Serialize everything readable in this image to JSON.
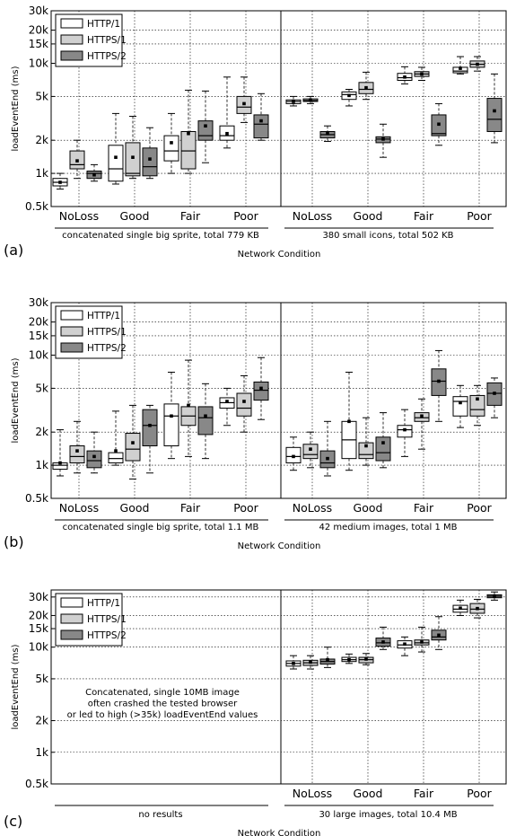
{
  "colors": {
    "HTTP/1": "#ffffff",
    "HTTPS/1": "#d0d0d0",
    "HTTPS/2": "#888888"
  },
  "legend": [
    "HTTP/1",
    "HTTPS/1",
    "HTTPS/2"
  ],
  "xlabel": "Network Condition",
  "ylabel": "loadEventEnd (ms)",
  "yticks": [
    "0.5k",
    "1k",
    "2k",
    "5k",
    "10k",
    "15k",
    "20k",
    "30k"
  ],
  "chart_data": [
    {
      "type": "box",
      "panel_label": "(a)",
      "scale": "log",
      "ylim": [
        500,
        30000
      ],
      "grid": true,
      "legend_position": "top-left",
      "groups": [
        {
          "subtitle": "concatenated single big sprite, total 779 KB",
          "categories": [
            "NoLoss",
            "Good",
            "Fair",
            "Poor"
          ],
          "series": [
            {
              "name": "HTTP/1",
              "boxes": [
                {
                  "wlo": 720,
                  "q1": 770,
                  "med": 830,
                  "q3": 900,
                  "whi": 1000,
                  "mean": 830
                },
                {
                  "wlo": 800,
                  "q1": 850,
                  "med": 1100,
                  "q3": 1800,
                  "whi": 3500,
                  "mean": 1400
                },
                {
                  "wlo": 1000,
                  "q1": 1300,
                  "med": 1600,
                  "q3": 2200,
                  "whi": 3500,
                  "mean": 1900
                },
                {
                  "wlo": 1700,
                  "q1": 2000,
                  "med": 2200,
                  "q3": 2700,
                  "whi": 7500,
                  "mean": 2300
                }
              ]
            },
            {
              "name": "HTTPS/1",
              "boxes": [
                {
                  "wlo": 900,
                  "q1": 1100,
                  "med": 1200,
                  "q3": 1600,
                  "whi": 2000,
                  "mean": 1300
                },
                {
                  "wlo": 900,
                  "q1": 950,
                  "med": 1000,
                  "q3": 1900,
                  "whi": 3300,
                  "mean": 1400
                },
                {
                  "wlo": 1000,
                  "q1": 1100,
                  "med": 1600,
                  "q3": 2400,
                  "whi": 5700,
                  "mean": 2300
                },
                {
                  "wlo": 2900,
                  "q1": 3500,
                  "med": 4000,
                  "q3": 5000,
                  "whi": 7500,
                  "mean": 4300
                }
              ]
            },
            {
              "name": "HTTPS/2",
              "boxes": [
                {
                  "wlo": 850,
                  "q1": 900,
                  "med": 1000,
                  "q3": 1050,
                  "whi": 1200,
                  "mean": 970
                },
                {
                  "wlo": 900,
                  "q1": 950,
                  "med": 1150,
                  "q3": 1700,
                  "whi": 2600,
                  "mean": 1350
                },
                {
                  "wlo": 1250,
                  "q1": 2000,
                  "med": 2200,
                  "q3": 3000,
                  "whi": 5600,
                  "mean": 2700
                },
                {
                  "wlo": 2000,
                  "q1": 2100,
                  "med": 2800,
                  "q3": 3400,
                  "whi": 5300,
                  "mean": 3000
                }
              ]
            }
          ]
        },
        {
          "subtitle": "380 small icons, total 502 KB",
          "categories": [
            "NoLoss",
            "Good",
            "Fair",
            "Poor"
          ],
          "series": [
            {
              "name": "HTTP/1",
              "boxes": [
                {
                  "wlo": 4100,
                  "q1": 4300,
                  "med": 4500,
                  "q3": 4650,
                  "whi": 5000,
                  "mean": 4500
                },
                {
                  "wlo": 4100,
                  "q1": 4700,
                  "med": 5200,
                  "q3": 5500,
                  "whi": 5800,
                  "mean": 5100
                },
                {
                  "wlo": 6500,
                  "q1": 7000,
                  "med": 7400,
                  "q3": 8100,
                  "whi": 9300,
                  "mean": 7500
                },
                {
                  "wlo": 8000,
                  "q1": 8200,
                  "med": 8500,
                  "q3": 9200,
                  "whi": 11500,
                  "mean": 9000
                }
              ]
            },
            {
              "name": "HTTPS/1",
              "boxes": [
                {
                  "wlo": 4300,
                  "q1": 4500,
                  "med": 4600,
                  "q3": 4750,
                  "whi": 5000,
                  "mean": 4650
                },
                {
                  "wlo": 4700,
                  "q1": 5300,
                  "med": 5800,
                  "q3": 6700,
                  "whi": 8300,
                  "mean": 6000
                },
                {
                  "wlo": 7000,
                  "q1": 7600,
                  "med": 8000,
                  "q3": 8400,
                  "whi": 9200,
                  "mean": 8000
                },
                {
                  "wlo": 8500,
                  "q1": 9200,
                  "med": 9800,
                  "q3": 10500,
                  "whi": 11500,
                  "mean": 9800
                }
              ]
            },
            {
              "name": "HTTPS/2",
              "boxes": [
                {
                  "wlo": 1950,
                  "q1": 2100,
                  "med": 2250,
                  "q3": 2400,
                  "whi": 2700,
                  "mean": 2300
                },
                {
                  "wlo": 1400,
                  "q1": 1900,
                  "med": 2050,
                  "q3": 2150,
                  "whi": 2800,
                  "mean": 2050
                },
                {
                  "wlo": 1800,
                  "q1": 2200,
                  "med": 2300,
                  "q3": 3400,
                  "whi": 4300,
                  "mean": 2800
                },
                {
                  "wlo": 1900,
                  "q1": 2400,
                  "med": 3100,
                  "q3": 4800,
                  "whi": 8000,
                  "mean": 3700
                }
              ]
            }
          ]
        }
      ]
    },
    {
      "type": "box",
      "panel_label": "(b)",
      "scale": "log",
      "ylim": [
        500,
        30000
      ],
      "grid": true,
      "legend_position": "top-left",
      "groups": [
        {
          "subtitle": "concatenated single big sprite, total 1.1 MB",
          "categories": [
            "NoLoss",
            "Good",
            "Fair",
            "Poor"
          ],
          "series": [
            {
              "name": "HTTP/1",
              "boxes": [
                {
                  "wlo": 800,
                  "q1": 920,
                  "med": 1000,
                  "q3": 1050,
                  "whi": 2100,
                  "mean": 1050
                },
                {
                  "wlo": 1000,
                  "q1": 1050,
                  "med": 1150,
                  "q3": 1300,
                  "whi": 3100,
                  "mean": 1350
                },
                {
                  "wlo": 1150,
                  "q1": 1500,
                  "med": 2800,
                  "q3": 3600,
                  "whi": 7000,
                  "mean": 2800
                },
                {
                  "wlo": 2300,
                  "q1": 3300,
                  "med": 3700,
                  "q3": 4100,
                  "whi": 5000,
                  "mean": 3800
                }
              ]
            },
            {
              "name": "HTTPS/1",
              "boxes": [
                {
                  "wlo": 850,
                  "q1": 1050,
                  "med": 1200,
                  "q3": 1500,
                  "whi": 2500,
                  "mean": 1350
                },
                {
                  "wlo": 750,
                  "q1": 1100,
                  "med": 1400,
                  "q3": 1950,
                  "whi": 3500,
                  "mean": 1600
                },
                {
                  "wlo": 1200,
                  "q1": 2300,
                  "med": 2800,
                  "q3": 3400,
                  "whi": 9000,
                  "mean": 3500
                },
                {
                  "wlo": 2000,
                  "q1": 2800,
                  "med": 3300,
                  "q3": 4500,
                  "whi": 6500,
                  "mean": 3800
                }
              ]
            },
            {
              "name": "HTTPS/2",
              "boxes": [
                {
                  "wlo": 850,
                  "q1": 950,
                  "med": 1100,
                  "q3": 1350,
                  "whi": 2000,
                  "mean": 1200
                },
                {
                  "wlo": 850,
                  "q1": 1500,
                  "med": 2300,
                  "q3": 3200,
                  "whi": 3500,
                  "mean": 2300
                },
                {
                  "wlo": 1150,
                  "q1": 1900,
                  "med": 2700,
                  "q3": 3400,
                  "whi": 5500,
                  "mean": 2800
                },
                {
                  "wlo": 2600,
                  "q1": 3900,
                  "med": 4800,
                  "q3": 5700,
                  "whi": 9500,
                  "mean": 5000
                }
              ]
            }
          ]
        },
        {
          "subtitle": "42 medium images, total 1 MB",
          "categories": [
            "NoLoss",
            "Good",
            "Fair",
            "Poor"
          ],
          "series": [
            {
              "name": "HTTP/1",
              "boxes": [
                {
                  "wlo": 900,
                  "q1": 1050,
                  "med": 1200,
                  "q3": 1450,
                  "whi": 1800,
                  "mean": 1200
                },
                {
                  "wlo": 900,
                  "q1": 1150,
                  "med": 1700,
                  "q3": 2500,
                  "whi": 7000,
                  "mean": 2500
                },
                {
                  "wlo": 1200,
                  "q1": 1800,
                  "med": 2100,
                  "q3": 2300,
                  "whi": 3200,
                  "mean": 2100
                },
                {
                  "wlo": 2200,
                  "q1": 2800,
                  "med": 3800,
                  "q3": 4200,
                  "whi": 5300,
                  "mean": 3700
                }
              ]
            },
            {
              "name": "HTTPS/1",
              "boxes": [
                {
                  "wlo": 950,
                  "q1": 1150,
                  "med": 1250,
                  "q3": 1550,
                  "whi": 2000,
                  "mean": 1400
                },
                {
                  "wlo": 1000,
                  "q1": 1150,
                  "med": 1250,
                  "q3": 1600,
                  "whi": 2700,
                  "mean": 1500
                },
                {
                  "wlo": 1400,
                  "q1": 2500,
                  "med": 2700,
                  "q3": 3000,
                  "whi": 4000,
                  "mean": 2800
                },
                {
                  "wlo": 2300,
                  "q1": 2800,
                  "med": 3200,
                  "q3": 4300,
                  "whi": 5300,
                  "mean": 4000
                }
              ]
            },
            {
              "name": "HTTPS/2",
              "boxes": [
                {
                  "wlo": 800,
                  "q1": 950,
                  "med": 1050,
                  "q3": 1350,
                  "whi": 2500,
                  "mean": 1150
                },
                {
                  "wlo": 950,
                  "q1": 1100,
                  "med": 1300,
                  "q3": 1800,
                  "whi": 3000,
                  "mean": 1600
                },
                {
                  "wlo": 2500,
                  "q1": 4300,
                  "med": 5800,
                  "q3": 7500,
                  "whi": 11000,
                  "mean": 5800
                },
                {
                  "wlo": 2700,
                  "q1": 3500,
                  "med": 4500,
                  "q3": 5600,
                  "whi": 6200,
                  "mean": 4500
                }
              ]
            }
          ]
        }
      ]
    },
    {
      "type": "box",
      "panel_label": "(c)",
      "scale": "log",
      "ylim": [
        500,
        35000
      ],
      "grid": true,
      "legend_position": "top-left",
      "groups": [
        {
          "subtitle": "no results",
          "note": [
            "Concatenated, single 10MB image",
            "often crashed the tested browser",
            "or led to high (>35k) loadEventEnd values"
          ],
          "categories": [],
          "series": []
        },
        {
          "subtitle": "30 large images, total 10.4 MB",
          "categories": [
            "NoLoss",
            "Good",
            "Fair",
            "Poor"
          ],
          "series": [
            {
              "name": "HTTP/1",
              "boxes": [
                {
                  "wlo": 6200,
                  "q1": 6600,
                  "med": 7000,
                  "q3": 7400,
                  "whi": 8300,
                  "mean": 7000
                },
                {
                  "wlo": 7000,
                  "q1": 7300,
                  "med": 7600,
                  "q3": 8000,
                  "whi": 8600,
                  "mean": 7600
                },
                {
                  "wlo": 8300,
                  "q1": 9800,
                  "med": 10500,
                  "q3": 11500,
                  "whi": 12500,
                  "mean": 10700
                },
                {
                  "wlo": 20000,
                  "q1": 21500,
                  "med": 23000,
                  "q3": 25000,
                  "whi": 28000,
                  "mean": 23500
                }
              ]
            },
            {
              "name": "HTTPS/1",
              "boxes": [
                {
                  "wlo": 6200,
                  "q1": 6700,
                  "med": 7100,
                  "q3": 7500,
                  "whi": 8300,
                  "mean": 7200
                },
                {
                  "wlo": 6800,
                  "q1": 7100,
                  "med": 7600,
                  "q3": 8000,
                  "whi": 8700,
                  "mean": 7700
                },
                {
                  "wlo": 9000,
                  "q1": 10500,
                  "med": 11000,
                  "q3": 11700,
                  "whi": 15500,
                  "mean": 11200
                },
                {
                  "wlo": 19000,
                  "q1": 21000,
                  "med": 23000,
                  "q3": 26000,
                  "whi": 28500,
                  "mean": 23300
                }
              ]
            },
            {
              "name": "HTTPS/2",
              "boxes": [
                {
                  "wlo": 6400,
                  "q1": 6900,
                  "med": 7300,
                  "q3": 7700,
                  "whi": 10000,
                  "mean": 7600
                },
                {
                  "wlo": 9500,
                  "q1": 10200,
                  "med": 11000,
                  "q3": 12200,
                  "whi": 15500,
                  "mean": 11200
                },
                {
                  "wlo": 9500,
                  "q1": 11700,
                  "med": 12500,
                  "q3": 14500,
                  "whi": 19500,
                  "mean": 13000
                },
                {
                  "wlo": 28000,
                  "q1": 29500,
                  "med": 30500,
                  "q3": 31500,
                  "whi": 33500,
                  "mean": 30500
                }
              ]
            }
          ]
        }
      ]
    }
  ]
}
